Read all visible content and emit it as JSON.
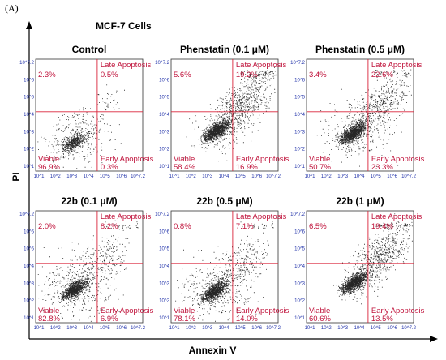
{
  "figure": {
    "panel_letter": "(A)",
    "subtitle": "MCF-7 Cells",
    "ylabel": "PI",
    "xlabel": "Annexin V"
  },
  "chart_data": {
    "type": "scatter",
    "description_units": "percent of cells per quadrant",
    "quadrant_labels": {
      "top_right": "Late Apoptosis",
      "bottom_left": "Viable",
      "bottom_right": "Early Apoptosis"
    },
    "axis_ticks": [
      "10^1",
      "10^2",
      "10^3",
      "10^4",
      "10^5",
      "10^6",
      "10^7.2"
    ],
    "panels": [
      {
        "title": "Control",
        "ul": "2.3%",
        "ur": "0.5%",
        "ll": "96.9%",
        "lr": "0.3%",
        "main_cluster": [
          0.35,
          0.26
        ],
        "spread": 0.05,
        "n": 900,
        "late_band": 0
      },
      {
        "title": "Phenstatin (0.1 μM)",
        "ul": "5.6%",
        "ur": "19.2%",
        "ll": "58.4%",
        "lr": "16.9%",
        "main_cluster": [
          0.42,
          0.36
        ],
        "spread": 0.12,
        "n": 2600,
        "late_band": 0.7
      },
      {
        "title": "Phenstatin (0.5 μM)",
        "ul": "3.4%",
        "ur": "22.6%",
        "ll": "50.7%",
        "lr": "23.3%",
        "main_cluster": [
          0.43,
          0.34
        ],
        "spread": 0.1,
        "n": 2400,
        "late_band": 0.55
      },
      {
        "title": "22b (0.1 μM)",
        "ul": "2.0%",
        "ur": "8.2%",
        "ll": "82.8%",
        "lr": "6.9%",
        "main_cluster": [
          0.36,
          0.3
        ],
        "spread": 0.07,
        "n": 1700,
        "late_band": 0.3
      },
      {
        "title": "22b (0.5 μM)",
        "ul": "0.8%",
        "ur": "7.1%",
        "ll": "78.1%",
        "lr": "14.0%",
        "main_cluster": [
          0.4,
          0.28
        ],
        "spread": 0.07,
        "n": 1700,
        "late_band": 0.3
      },
      {
        "title": "22b (1 μM)",
        "ul": "6.5%",
        "ur": "19.4%",
        "ll": "60.6%",
        "lr": "13.5%",
        "main_cluster": [
          0.44,
          0.36
        ],
        "spread": 0.13,
        "n": 2800,
        "late_band": 0.75
      }
    ],
    "colors": {
      "quadrant_line": "#d9253a",
      "dots": "#000000",
      "ticks": "#2233aa",
      "labels": "#c0143c"
    }
  }
}
